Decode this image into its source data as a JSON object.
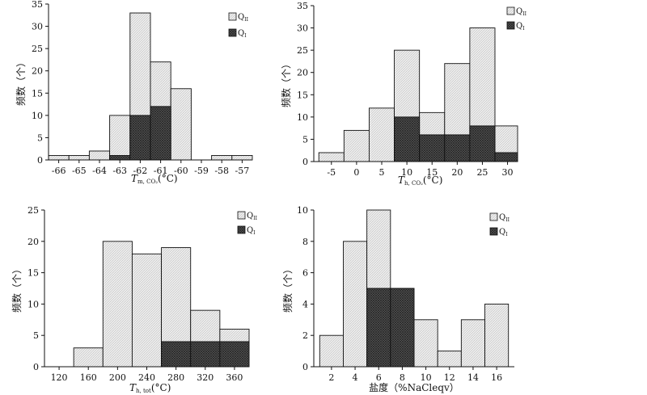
{
  "chart_data": [
    {
      "type": "bar",
      "categories": [
        "-66",
        "-65",
        "-64",
        "-63",
        "-62",
        "-61",
        "-60",
        "-59",
        "-58",
        "-57"
      ],
      "xlabel": "T",
      "xlabel_sub": "m, CO₂",
      "xlabel_unit": "(°C)",
      "ylabel": "频数（个）",
      "ylim": [
        0,
        35
      ],
      "yticks": [
        0,
        5,
        10,
        15,
        20,
        25,
        30,
        35
      ],
      "legend_position": "top-right",
      "legend_labels": [
        "Q",
        "Q"
      ],
      "legend_subs": [
        "II",
        "I"
      ],
      "series": [
        {
          "name": "QII",
          "values": [
            1,
            1,
            2,
            10,
            33,
            22,
            16,
            0,
            1,
            1
          ]
        },
        {
          "name": "QI",
          "values": [
            0,
            0,
            0,
            1,
            10,
            12,
            0,
            0,
            0,
            0
          ]
        }
      ]
    },
    {
      "type": "bar",
      "categories": [
        "-5",
        "0",
        "5",
        "10",
        "15",
        "20",
        "25",
        "30"
      ],
      "bins": [
        [
          -7.5,
          -2.5
        ],
        [
          -2.5,
          2.5
        ],
        [
          2.5,
          7.5
        ],
        [
          7.5,
          12.5
        ],
        [
          12.5,
          17.5
        ],
        [
          17.5,
          22.5
        ],
        [
          22.5,
          27.5
        ],
        [
          27.5,
          32
        ]
      ],
      "xlabel": "T",
      "xlabel_sub": "h, CO₂",
      "xlabel_unit": "(°C)",
      "ylabel": "频数（个）",
      "ylim": [
        0,
        35
      ],
      "yticks": [
        0,
        5,
        10,
        15,
        20,
        25,
        30,
        35
      ],
      "legend_position": "top-right",
      "legend_labels": [
        "Q",
        "Q"
      ],
      "legend_subs": [
        "II",
        "I"
      ],
      "series": [
        {
          "name": "QII",
          "values": [
            2,
            7,
            12,
            25,
            11,
            22,
            30,
            8
          ]
        },
        {
          "name": "QI",
          "values": [
            0,
            0,
            0,
            10,
            6,
            6,
            8,
            2
          ]
        }
      ]
    },
    {
      "type": "bar",
      "categories": [
        "120",
        "160",
        "200",
        "240",
        "280",
        "320",
        "360"
      ],
      "bins": [
        [
          140,
          180
        ],
        [
          180,
          220
        ],
        [
          220,
          260
        ],
        [
          260,
          300
        ],
        [
          300,
          340
        ],
        [
          340,
          380
        ]
      ],
      "xlabel": "T",
      "xlabel_sub": "h, tot",
      "xlabel_unit": "(°C)",
      "ylabel": "频数（个）",
      "ylim": [
        0,
        25
      ],
      "yticks": [
        0,
        5,
        10,
        15,
        20,
        25
      ],
      "legend_position": "top-right",
      "legend_labels": [
        "Q",
        "Q"
      ],
      "legend_subs": [
        "II",
        "I"
      ],
      "series": [
        {
          "name": "QII",
          "values": [
            3,
            20,
            18,
            19,
            9,
            6
          ]
        },
        {
          "name": "QI",
          "values": [
            0,
            0,
            0,
            4,
            4,
            4
          ]
        }
      ]
    },
    {
      "type": "bar",
      "categories": [
        "2",
        "4",
        "6",
        "8",
        "10",
        "12",
        "14",
        "16"
      ],
      "bins": [
        [
          1,
          3
        ],
        [
          3,
          5
        ],
        [
          5,
          7
        ],
        [
          7,
          9
        ],
        [
          9,
          11
        ],
        [
          11,
          13
        ],
        [
          13,
          15
        ],
        [
          15,
          17
        ]
      ],
      "xlabel": "盐度（%NaCleqv）",
      "xlabel_sub": "",
      "xlabel_unit": "",
      "ylabel": "频数（个）",
      "ylim": [
        0,
        10
      ],
      "yticks": [
        0,
        2,
        4,
        6,
        8,
        10
      ],
      "legend_position": "top-right",
      "legend_labels": [
        "Q",
        "Q"
      ],
      "legend_subs": [
        "II",
        "I"
      ],
      "series": [
        {
          "name": "QII",
          "values": [
            2,
            8,
            10,
            5,
            3,
            1,
            3,
            4
          ]
        },
        {
          "name": "QI",
          "values": [
            0,
            0,
            5,
            5,
            0,
            0,
            0,
            0
          ]
        }
      ]
    }
  ]
}
